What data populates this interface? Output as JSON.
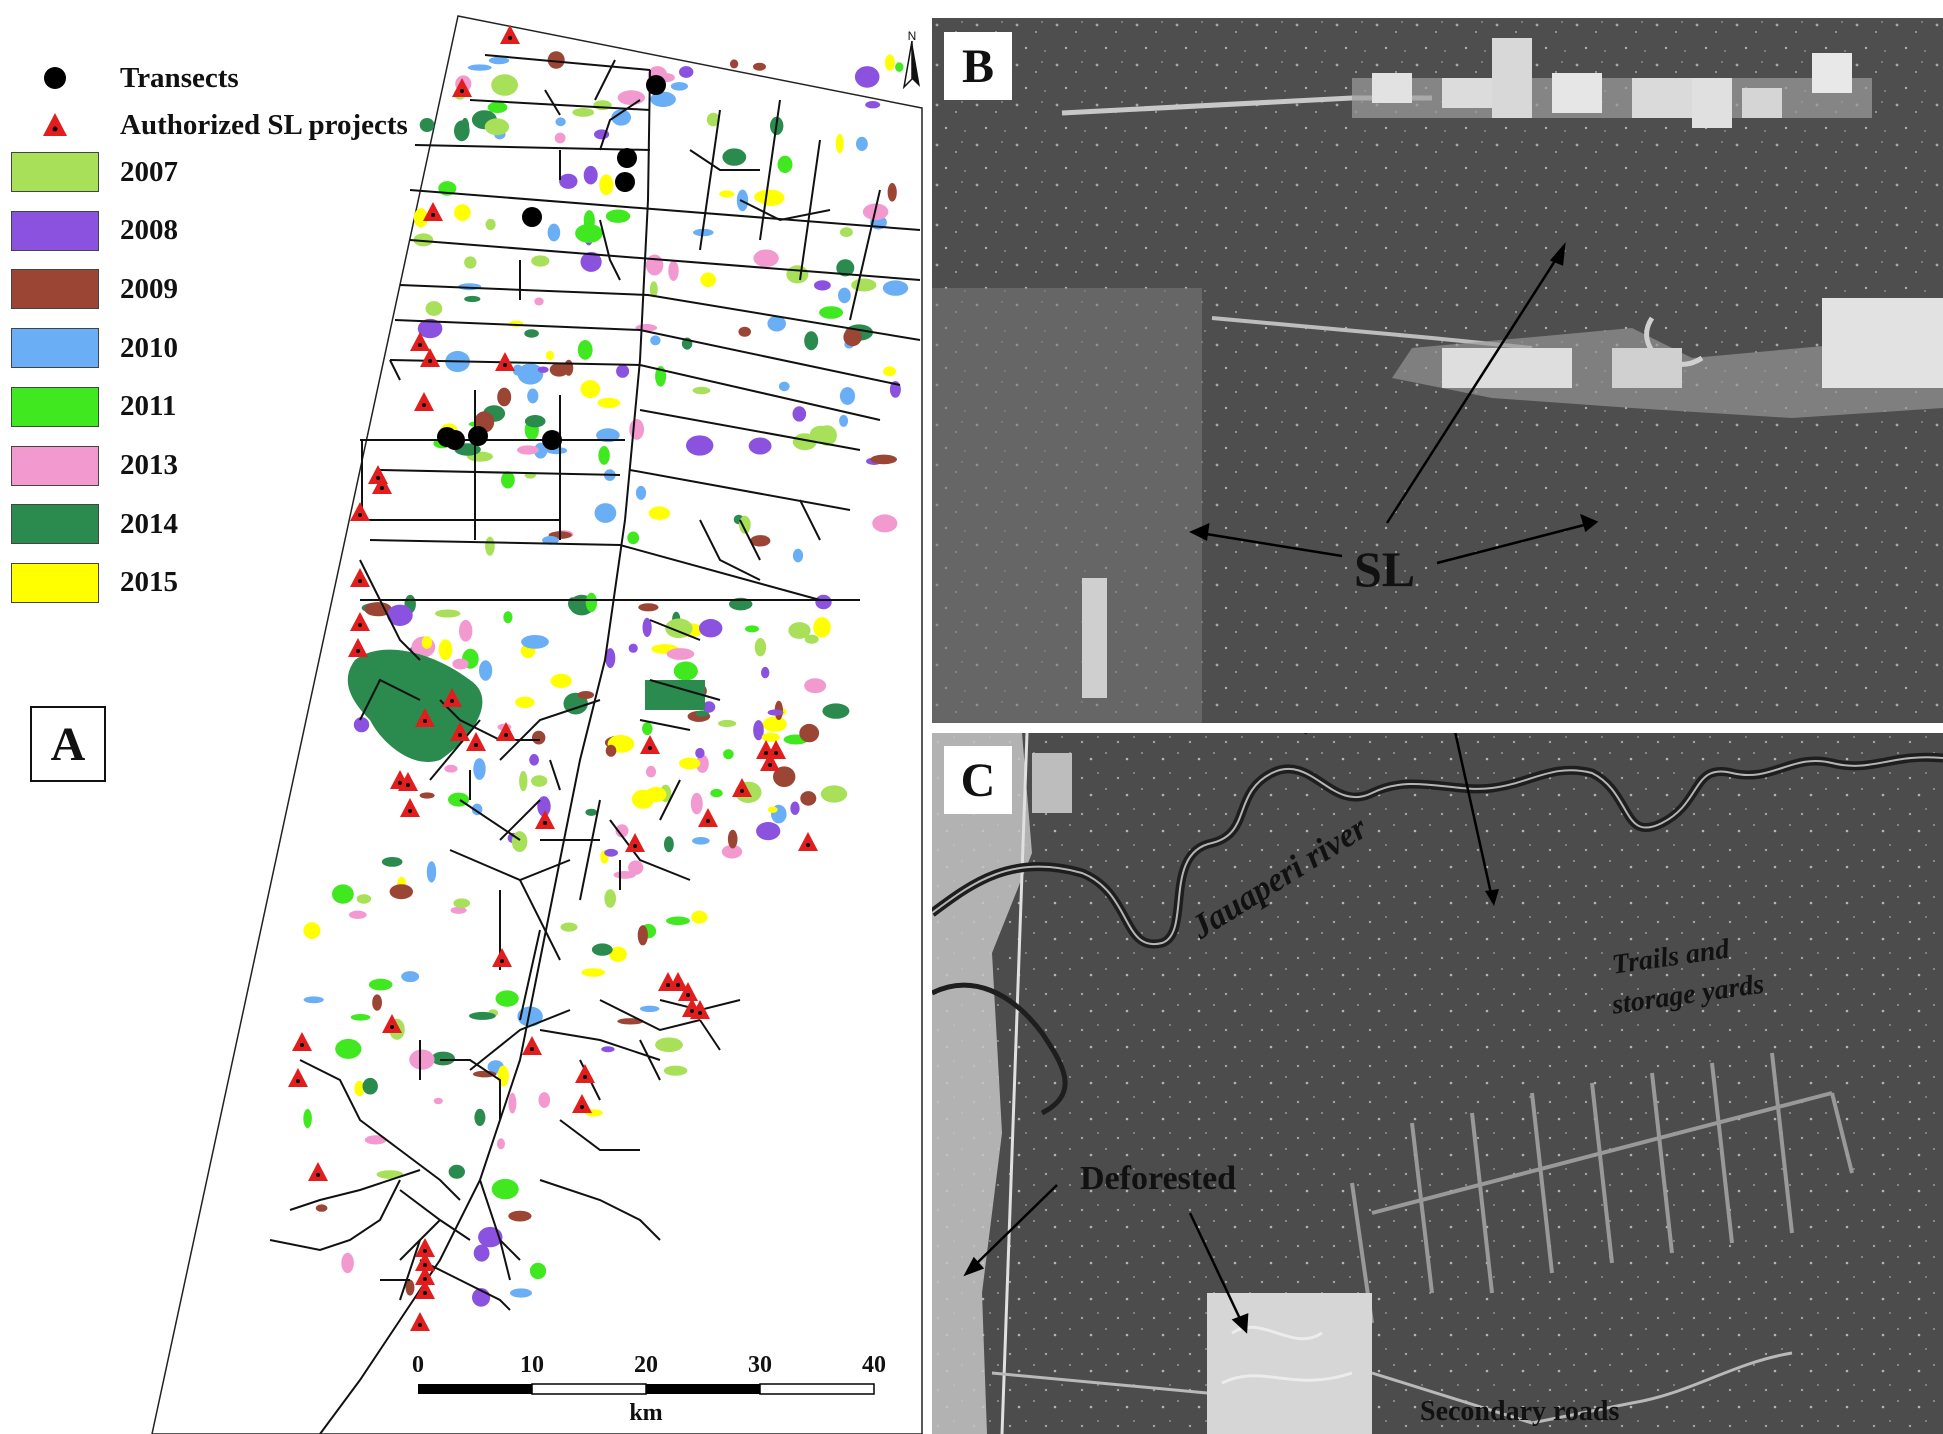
{
  "legend": {
    "transects": "Transects",
    "authorized": "Authorized SL projects",
    "years": [
      {
        "label": "2007",
        "color": "#a8e05a"
      },
      {
        "label": "2008",
        "color": "#8b52e0"
      },
      {
        "label": "2009",
        "color": "#9b4535"
      },
      {
        "label": "2010",
        "color": "#6aaef5"
      },
      {
        "label": "2011",
        "color": "#3fe81f"
      },
      {
        "label": "2013",
        "color": "#f29ad0"
      },
      {
        "label": "2014",
        "color": "#2b8a4e"
      },
      {
        "label": "2015",
        "color": "#ffff00"
      }
    ]
  },
  "panels": {
    "a": "A",
    "b": "B",
    "c": "C"
  },
  "north": "N",
  "scalebar": {
    "ticks": [
      "0",
      "10",
      "20",
      "30",
      "40"
    ],
    "unit": "km"
  },
  "annotations": {
    "sl": "SL",
    "river": "Jauaperi river",
    "trails_1": "Trails and",
    "trails_2": "storage yards",
    "deforested": "Deforested",
    "secondary": "Secondary roads"
  },
  "colors": {
    "triangle": "#e11d1d",
    "road": "#111111",
    "photo_dark": "#4d4d4d"
  }
}
